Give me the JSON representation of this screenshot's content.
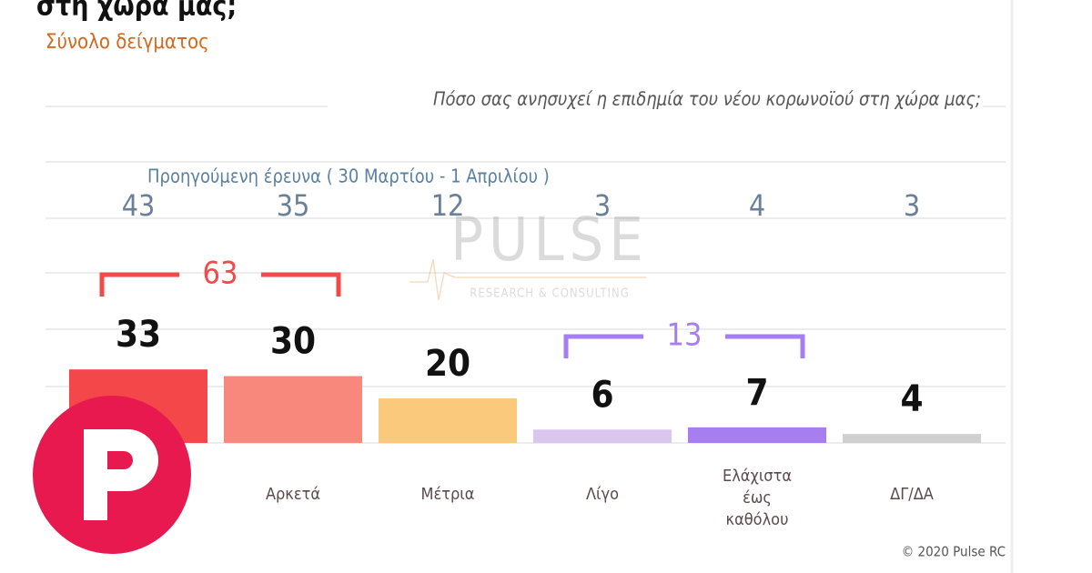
{
  "chart_data": {
    "type": "bar",
    "title": "στη χώρα μας;",
    "subtitle": "Σύνολο δείγματος",
    "question": "Πόσο σας ανησυχεί η επιδημία του νέου κορωνοϊού στη χώρα μας;",
    "categories": [
      null,
      "Αρκετά",
      "Μέτρια",
      "Λίγο",
      "Ελάχιστα έως καθόλου",
      "ΔΓ/ΔΑ"
    ],
    "values": [
      33,
      30,
      20,
      6,
      7,
      4
    ],
    "colors": [
      "#f4474a",
      "#f8887c",
      "#fbc97c",
      "#dac6ee",
      "#a77ef2",
      "#d0d0d0"
    ],
    "previous": {
      "label": "Προηγούμενη έρευνα   ( 30 Μαρτίου - 1 Απριλίου )",
      "values": [
        43,
        35,
        12,
        3,
        4,
        3
      ]
    },
    "groups": [
      {
        "value": 63,
        "from": 0,
        "to": 1,
        "color": "#f04a4a"
      },
      {
        "value": 13,
        "from": 3,
        "to": 4,
        "color": "#a77ef2"
      }
    ],
    "watermark": {
      "name": "PULSE",
      "tagline": "RESEARCH & CONSULTING"
    },
    "credit": "© 2020 Pulse RC"
  }
}
